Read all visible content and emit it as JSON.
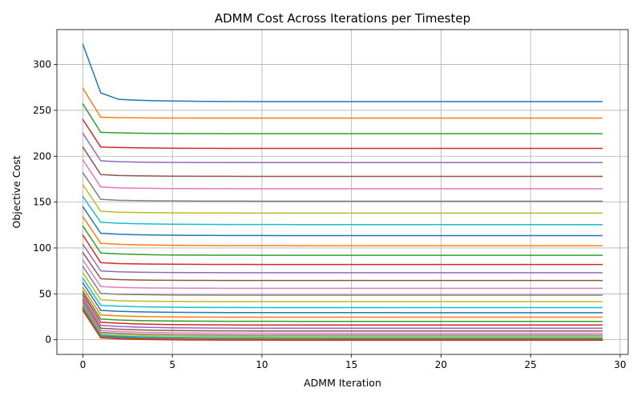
{
  "chart_data": {
    "type": "line",
    "title": "ADMM Cost Across Iterations per Timestep",
    "xlabel": "ADMM Iteration",
    "ylabel": "Objective Cost",
    "xlim": [
      -1.45,
      30.45
    ],
    "ylim": [
      -16,
      338
    ],
    "xticks": [
      0,
      5,
      10,
      15,
      20,
      25,
      30
    ],
    "yticks": [
      0,
      50,
      100,
      150,
      200,
      250,
      300
    ],
    "grid": true,
    "legend": "none",
    "iterations": {
      "start": 0,
      "end": 29
    },
    "palette": [
      "#1f77b4",
      "#ff7f0e",
      "#2ca02c",
      "#d62728",
      "#9467bd",
      "#8c564b",
      "#e377c2",
      "#7f7f7f",
      "#bcbd22",
      "#17becf"
    ],
    "series": [
      {
        "start": 322,
        "plateau": 259.5,
        "i1": 269,
        "i2": 262
      },
      {
        "start": 274,
        "plateau": 241.5,
        "i1": 242.5,
        "i2": 242
      },
      {
        "start": 257,
        "plateau": 224.5,
        "i1": 226,
        "i2": 225.5
      },
      {
        "start": 240,
        "plateau": 208.5,
        "i1": 210,
        "i2": 209.5
      },
      {
        "start": 225,
        "plateau": 193,
        "i1": 195,
        "i2": 194
      },
      {
        "start": 210,
        "plateau": 178,
        "i1": 180,
        "i2": 179
      },
      {
        "start": 196,
        "plateau": 164.5,
        "i1": 166.5,
        "i2": 165.5
      },
      {
        "start": 182,
        "plateau": 151,
        "i1": 153,
        "i2": 152
      },
      {
        "start": 169,
        "plateau": 138,
        "i1": 140,
        "i2": 139
      },
      {
        "start": 156,
        "plateau": 125.5,
        "i1": 128,
        "i2": 127
      },
      {
        "start": 145,
        "plateau": 113.5,
        "i1": 116,
        "i2": 115
      },
      {
        "start": 134,
        "plateau": 102.5,
        "i1": 105,
        "i2": 104
      },
      {
        "start": 124,
        "plateau": 92,
        "i1": 94.5,
        "i2": 93.5
      },
      {
        "start": 114,
        "plateau": 82,
        "i1": 84,
        "i2": 83
      },
      {
        "start": 104,
        "plateau": 73,
        "i1": 75,
        "i2": 74
      },
      {
        "start": 95,
        "plateau": 64.5,
        "i1": 66.5,
        "i2": 65.5
      },
      {
        "start": 87,
        "plateau": 56,
        "i1": 58,
        "i2": 57
      },
      {
        "start": 80,
        "plateau": 48.5,
        "i1": 50.5,
        "i2": 49.5
      },
      {
        "start": 73,
        "plateau": 41.5,
        "i1": 43.5,
        "i2": 42.5
      },
      {
        "start": 67,
        "plateau": 35,
        "i1": 37.5,
        "i2": 36.5
      },
      {
        "start": 62,
        "plateau": 29.5,
        "i1": 32,
        "i2": 31
      },
      {
        "start": 57,
        "plateau": 24.5,
        "i1": 27,
        "i2": 26
      },
      {
        "start": 53,
        "plateau": 20,
        "i1": 22.5,
        "i2": 21.5
      },
      {
        "start": 50,
        "plateau": 16,
        "i1": 19,
        "i2": 18
      },
      {
        "start": 47,
        "plateau": 12.5,
        "i1": 15.5,
        "i2": 14.5
      },
      {
        "start": 44,
        "plateau": 9.5,
        "i1": 12.5,
        "i2": 11.5
      },
      {
        "start": 42,
        "plateau": 7,
        "i1": 10,
        "i2": 9
      },
      {
        "start": 40,
        "plateau": 5,
        "i1": 8,
        "i2": 7
      },
      {
        "start": 38,
        "plateau": 3.5,
        "i1": 6.5,
        "i2": 5.5
      },
      {
        "start": 36.5,
        "plateau": 2,
        "i1": 5,
        "i2": 4
      },
      {
        "start": 35,
        "plateau": 1,
        "i1": 4,
        "i2": 3
      },
      {
        "start": 34,
        "plateau": 0.5,
        "i1": 3,
        "i2": 2
      },
      {
        "start": 33,
        "plateau": 0,
        "i1": 2.5,
        "i2": 1.5
      },
      {
        "start": 32,
        "plateau": -0.5,
        "i1": 2,
        "i2": 1
      }
    ]
  }
}
